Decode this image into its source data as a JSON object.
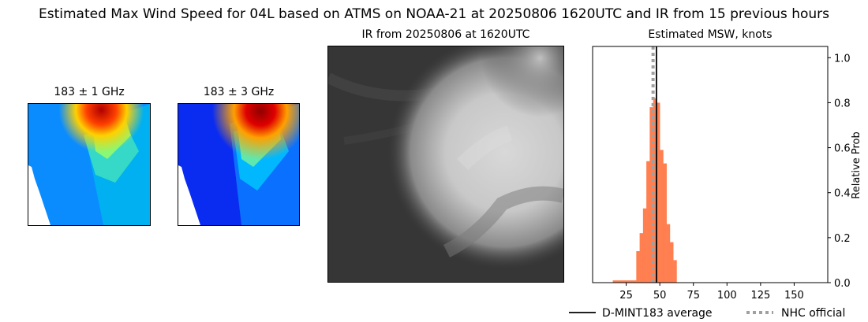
{
  "suptitle": "Estimated Max Wind Speed for 04L based on ATMS on NOAA-21 at 20250806 1620UTC and IR from 15 previous hours",
  "panels": {
    "mw1_title": "183 ± 1 GHz",
    "mw3_title": "183 ± 3 GHz",
    "ir_title": "IR from 20250806 at 1620UTC"
  },
  "colors": {
    "bar": "#ff7f50",
    "average_line": "#000000",
    "nhc_line": "#a0a0a0"
  },
  "chart_data": {
    "type": "bar",
    "title": "Estimated MSW, knots",
    "xlabel": "",
    "ylabel": "Relative Prob",
    "xlim": [
      0,
      175
    ],
    "ylim": [
      0,
      1.05
    ],
    "xticks": [
      25,
      50,
      75,
      100,
      125,
      150
    ],
    "yticks": [
      0.0,
      0.2,
      0.4,
      0.6,
      0.8,
      1.0
    ],
    "ytick_labels": [
      "0.0",
      "0.2",
      "0.4",
      "0.6",
      "0.8",
      "1.0"
    ],
    "yaxis_side": "right",
    "bin_width": 2.5,
    "bins": [
      {
        "x": 15,
        "y": 0.01
      },
      {
        "x": 17.5,
        "y": 0.01
      },
      {
        "x": 20,
        "y": 0.01
      },
      {
        "x": 22.5,
        "y": 0.01
      },
      {
        "x": 25,
        "y": 0.01
      },
      {
        "x": 27.5,
        "y": 0.01
      },
      {
        "x": 30,
        "y": 0.01
      },
      {
        "x": 32.5,
        "y": 0.14
      },
      {
        "x": 35,
        "y": 0.22
      },
      {
        "x": 37.5,
        "y": 0.33
      },
      {
        "x": 40,
        "y": 0.54
      },
      {
        "x": 42.5,
        "y": 0.78
      },
      {
        "x": 45,
        "y": 0.82
      },
      {
        "x": 47.5,
        "y": 0.8
      },
      {
        "x": 50,
        "y": 0.59
      },
      {
        "x": 52.5,
        "y": 0.53
      },
      {
        "x": 55,
        "y": 0.26
      },
      {
        "x": 57.5,
        "y": 0.18
      },
      {
        "x": 60,
        "y": 0.1
      }
    ],
    "average_value": 47.5,
    "nhc_official_value": 45,
    "legend": [
      {
        "label": "D-MINT183 average",
        "style": "solid"
      },
      {
        "label": "NHC official",
        "style": "dotted"
      }
    ],
    "legend_position": "bottom-right"
  }
}
